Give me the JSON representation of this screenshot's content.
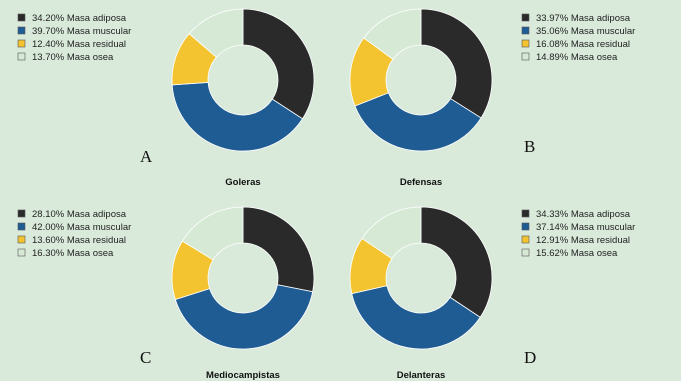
{
  "colors": {
    "Masa adiposa": "#2a2a2a",
    "Masa muscular": "#1f5c94",
    "Masa residual": "#f4c430",
    "Masa osea": "#d6e9d4",
    "background": "#d9eadb"
  },
  "chart_data": [
    {
      "type": "pie",
      "style": "donut",
      "panel_letter": "A",
      "title": "Goleras",
      "categories": [
        "Masa adiposa",
        "Masa muscular",
        "Masa residual",
        "Masa osea"
      ],
      "values": [
        34.2,
        39.7,
        12.4,
        13.7
      ],
      "legend_labels": [
        "34.20% Masa adiposa",
        "39.70% Masa muscular",
        "12.40% Masa residual",
        "13.70% Masa osea"
      ],
      "legend_position": "top-left"
    },
    {
      "type": "pie",
      "style": "donut",
      "panel_letter": "B",
      "title": "Defensas",
      "categories": [
        "Masa adiposa",
        "Masa muscular",
        "Masa residual",
        "Masa osea"
      ],
      "values": [
        33.97,
        35.06,
        16.08,
        14.89
      ],
      "legend_labels": [
        "33.97% Masa adiposa",
        "35.06% Masa muscular",
        "16.08% Masa residual",
        "14.89% Masa osea"
      ],
      "legend_position": "top-right"
    },
    {
      "type": "pie",
      "style": "donut",
      "panel_letter": "C",
      "title": "Mediocampistas",
      "categories": [
        "Masa adiposa",
        "Masa muscular",
        "Masa residual",
        "Masa osea"
      ],
      "values": [
        28.1,
        42.0,
        13.6,
        16.3
      ],
      "legend_labels": [
        "28.10% Masa adiposa",
        "42.00% Masa muscular",
        "13.60% Masa residual",
        "16.30% Masa osea"
      ],
      "legend_position": "top-left"
    },
    {
      "type": "pie",
      "style": "donut",
      "panel_letter": "D",
      "title": "Delanteras",
      "categories": [
        "Masa adiposa",
        "Masa muscular",
        "Masa residual",
        "Masa osea"
      ],
      "values": [
        34.33,
        37.14,
        12.91,
        15.62
      ],
      "legend_labels": [
        "34.33% Masa adiposa",
        "37.14% Masa muscular",
        "12.91% Masa residual",
        "15.62% Masa osea"
      ],
      "legend_position": "top-right"
    }
  ]
}
